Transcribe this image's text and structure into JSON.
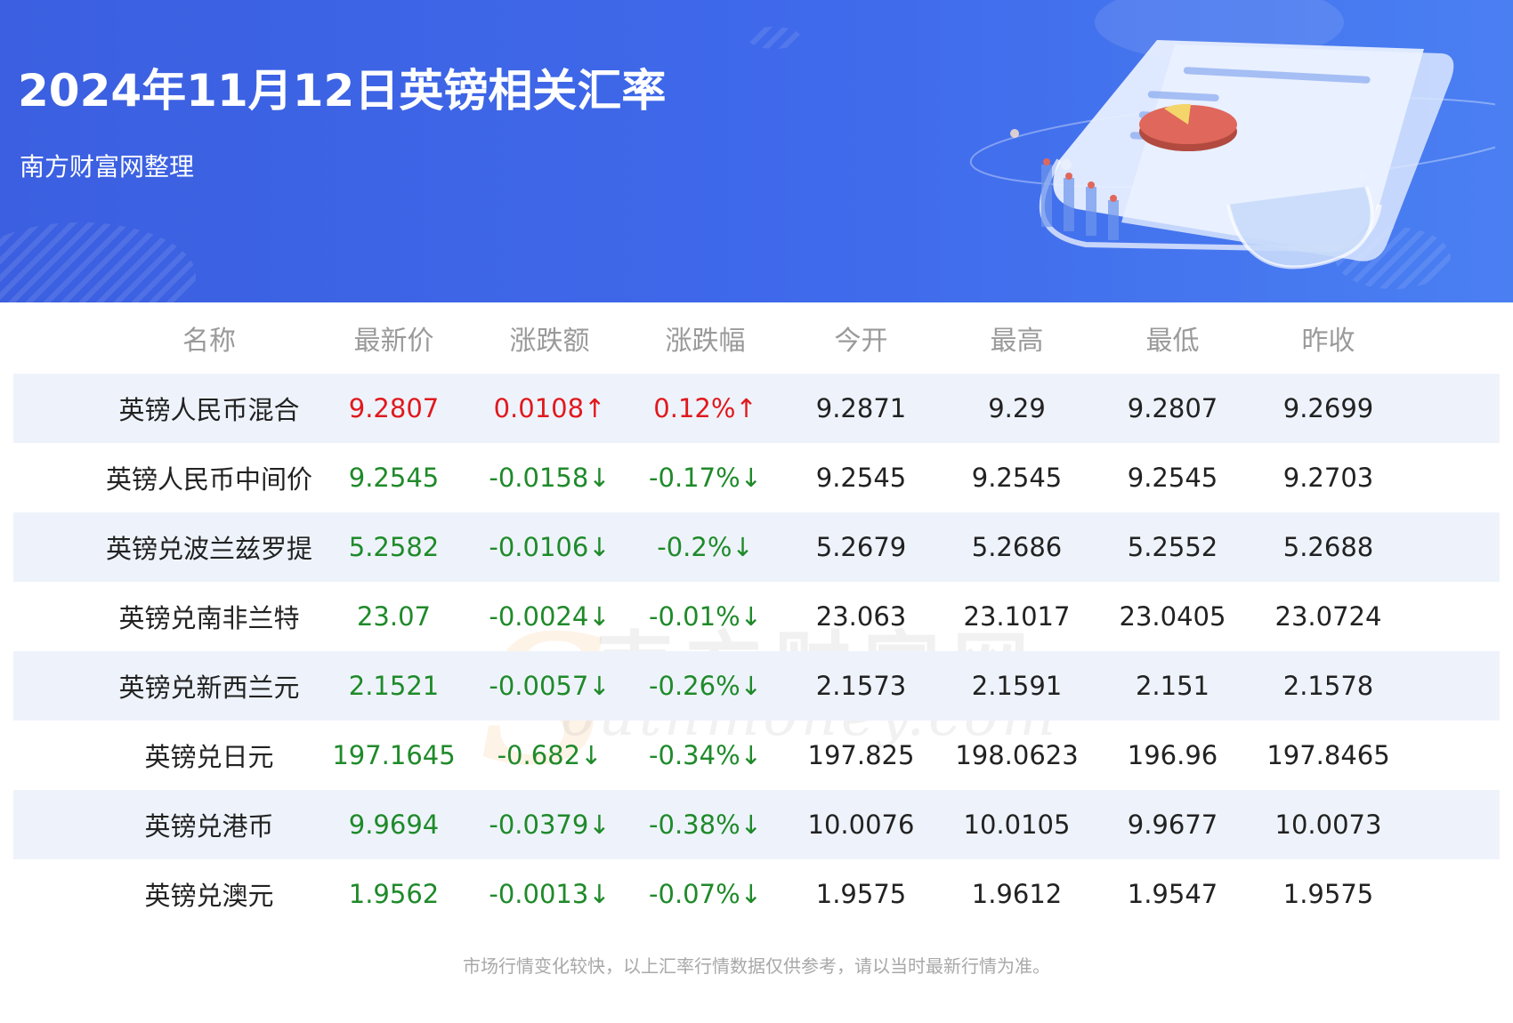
{
  "header": {
    "title": "2024年11月12日英镑相关汇率",
    "subtitle": "南方财富网整理"
  },
  "watermark": {
    "cn": "南方财富网",
    "en": "outhmoney.com",
    "s": "S"
  },
  "table": {
    "columns": [
      "名称",
      "最新价",
      "涨跌额",
      "涨跌幅",
      "今开",
      "最高",
      "最低",
      "昨收"
    ],
    "rows": [
      {
        "name": "英镑人民币混合",
        "latest": "9.2807",
        "change": "0.0108↑",
        "pct": "0.12%↑",
        "open": "9.2871",
        "high": "9.29",
        "low": "9.2807",
        "prev": "9.2699",
        "trend": "up"
      },
      {
        "name": "英镑人民币中间价",
        "latest": "9.2545",
        "change": "-0.0158↓",
        "pct": "-0.17%↓",
        "open": "9.2545",
        "high": "9.2545",
        "low": "9.2545",
        "prev": "9.2703",
        "trend": "down"
      },
      {
        "name": "英镑兑波兰兹罗提",
        "latest": "5.2582",
        "change": "-0.0106↓",
        "pct": "-0.2%↓",
        "open": "5.2679",
        "high": "5.2686",
        "low": "5.2552",
        "prev": "5.2688",
        "trend": "down"
      },
      {
        "name": "英镑兑南非兰特",
        "latest": "23.07",
        "change": "-0.0024↓",
        "pct": "-0.01%↓",
        "open": "23.063",
        "high": "23.1017",
        "low": "23.0405",
        "prev": "23.0724",
        "trend": "down"
      },
      {
        "name": "英镑兑新西兰元",
        "latest": "2.1521",
        "change": "-0.0057↓",
        "pct": "-0.26%↓",
        "open": "2.1573",
        "high": "2.1591",
        "low": "2.151",
        "prev": "2.1578",
        "trend": "down"
      },
      {
        "name": "英镑兑日元",
        "latest": "197.1645",
        "change": "-0.682↓",
        "pct": "-0.34%↓",
        "open": "197.825",
        "high": "198.0623",
        "low": "196.96",
        "prev": "197.8465",
        "trend": "down"
      },
      {
        "name": "英镑兑港币",
        "latest": "9.9694",
        "change": "-0.0379↓",
        "pct": "-0.38%↓",
        "open": "10.0076",
        "high": "10.0105",
        "low": "9.9677",
        "prev": "10.0073",
        "trend": "down"
      },
      {
        "name": "英镑兑澳元",
        "latest": "1.9562",
        "change": "-0.0013↓",
        "pct": "-0.07%↓",
        "open": "1.9575",
        "high": "1.9612",
        "low": "1.9547",
        "prev": "1.9575",
        "trend": "down"
      }
    ]
  },
  "footer": {
    "note": "市场行情变化较快，以上汇率行情数据仅供参考，请以当时最新行情为准。"
  },
  "colors": {
    "up": "#e0191e",
    "down": "#1f8a2a",
    "header_bg": "#3f6aeb",
    "stripe": "#eef3fb"
  },
  "icons": {
    "illustration": "report-document-with-pie-chart-illustration"
  }
}
